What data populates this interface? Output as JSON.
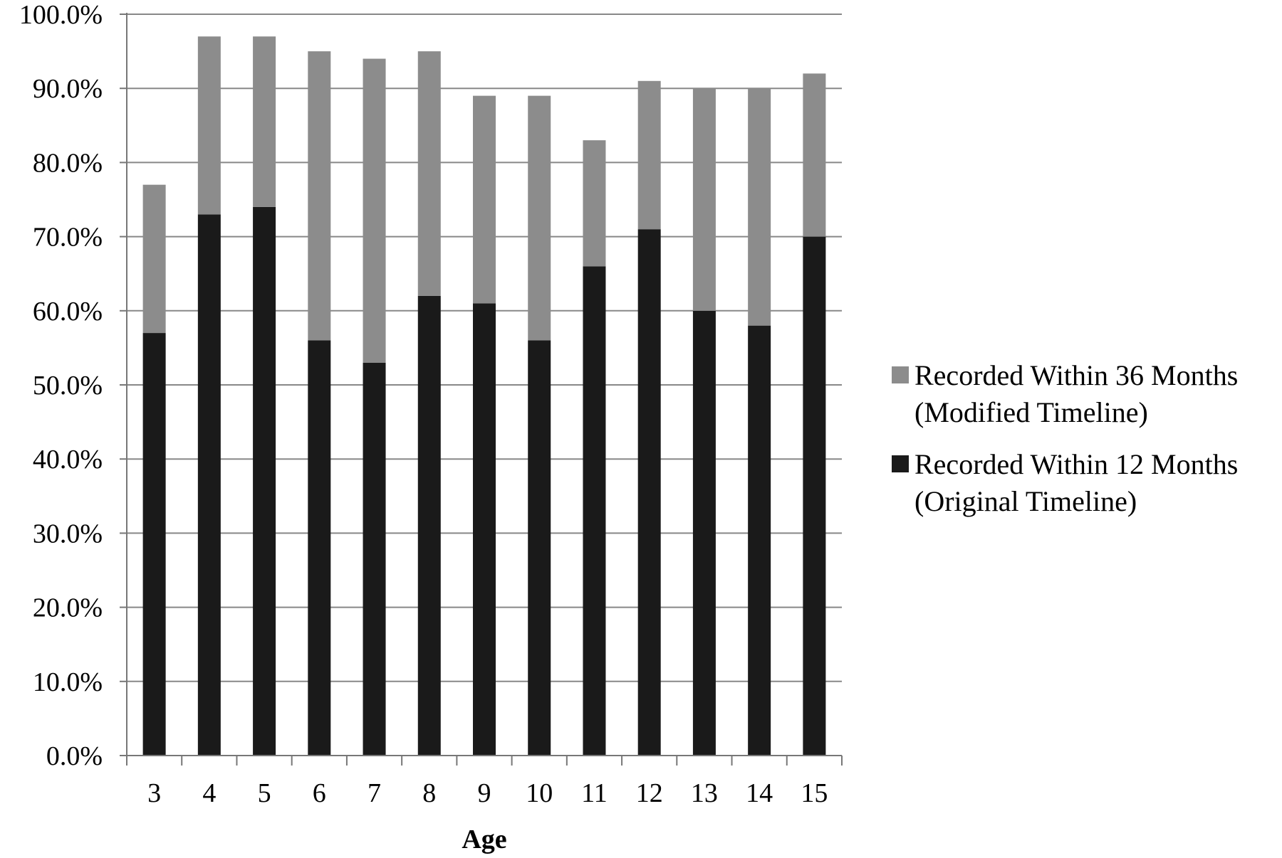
{
  "colors": {
    "background": "#ffffff",
    "grid": "#888888",
    "axis": "#777777",
    "series_36": "#8c8c8c",
    "series_12": "#1a1a1a"
  },
  "chart_data": {
    "type": "bar",
    "stacked": true,
    "title": "",
    "xlabel": "Age",
    "ylabel": "",
    "ylim": [
      0,
      100
    ],
    "y_tick_step": 10,
    "y_tick_format": "percent_one_decimal",
    "grid": true,
    "legend_position": "right",
    "categories": [
      "3",
      "4",
      "5",
      "6",
      "7",
      "8",
      "9",
      "10",
      "11",
      "12",
      "13",
      "14",
      "15"
    ],
    "series": [
      {
        "name": "Recorded Within 12 Months (Original Timeline)",
        "legend_lines": [
          "Recorded Within 12 Months",
          "(Original Timeline)"
        ],
        "color": "#1a1a1a",
        "values": [
          57,
          73,
          74,
          56,
          53,
          62,
          61,
          56,
          66,
          71,
          60,
          58,
          70
        ]
      },
      {
        "name": "Recorded Within 36 Months (Modified Timeline)",
        "legend_lines": [
          "Recorded Within 36 Months",
          "(Modified Timeline)"
        ],
        "color": "#8c8c8c",
        "values": [
          20,
          24,
          23,
          39,
          41,
          33,
          28,
          33,
          17,
          20,
          30,
          32,
          22
        ]
      }
    ],
    "totals": [
      77,
      97,
      97,
      95,
      94,
      95,
      89,
      89,
      83,
      91,
      90,
      90,
      92
    ]
  }
}
